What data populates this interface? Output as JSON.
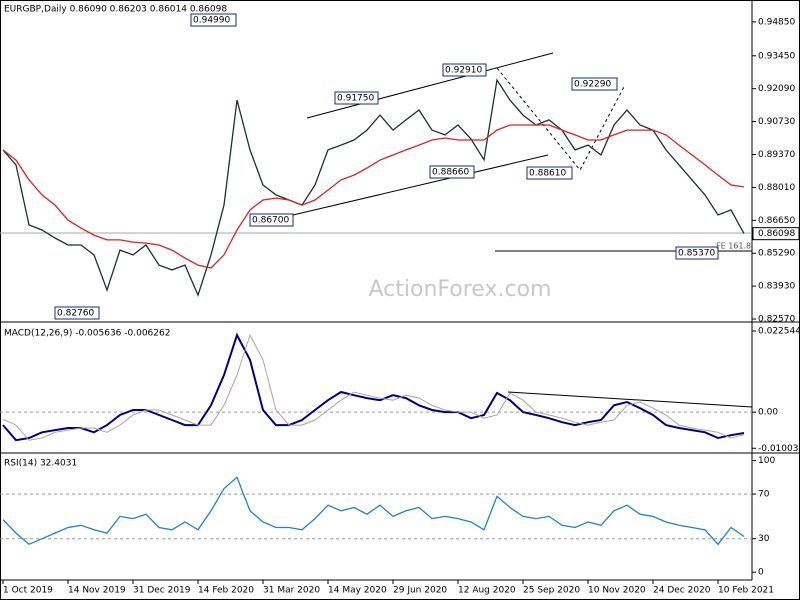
{
  "chart_data": [
    {
      "type": "line",
      "title": "EURGBP,Daily  0.86090 0.86203 0.86014 0.86098",
      "watermark": "ActionForex.com",
      "ylim": [
        0.8253,
        0.9559
      ],
      "yticks": [
        {
          "value": 0.9485,
          "label": "0.94850"
        },
        {
          "value": 0.9345,
          "label": "0.93450"
        },
        {
          "value": 0.9209,
          "label": "0.92090"
        },
        {
          "value": 0.9073,
          "label": "0.90730"
        },
        {
          "value": 0.8937,
          "label": "0.89370"
        },
        {
          "value": 0.8801,
          "label": "0.88010"
        },
        {
          "value": 0.8665,
          "label": "0.86650"
        },
        {
          "value": 0.8529,
          "label": "0.85290"
        },
        {
          "value": 0.8393,
          "label": "0.83930"
        },
        {
          "value": 0.8257,
          "label": "0.82570"
        }
      ],
      "last_price": {
        "value": 0.86098,
        "label": "0.86098"
      },
      "series": [
        {
          "color": "#1f3030",
          "values": [
            0.8956,
            0.8894,
            0.8646,
            0.8625,
            0.8592,
            0.8563,
            0.8563,
            0.8522,
            0.8377,
            0.8542,
            0.8522,
            0.8563,
            0.848,
            0.846,
            0.848,
            0.8356,
            0.8522,
            0.8728,
            0.9162,
            0.8956,
            0.8811,
            0.877,
            0.8749,
            0.8728,
            0.8811,
            0.8956,
            0.8976,
            0.8997,
            0.9038,
            0.91,
            0.9038,
            0.908,
            0.9121,
            0.9038,
            0.9018,
            0.9059,
            0.9001,
            0.8915,
            0.9245,
            0.9162,
            0.91,
            0.9059,
            0.908,
            0.9038,
            0.8956,
            0.8976,
            0.8935,
            0.9059,
            0.9121,
            0.9059,
            0.9038,
            0.8956,
            0.8894,
            0.8832,
            0.877,
            0.8687,
            0.8708,
            0.861
          ]
        },
        {
          "color": "#e02020",
          "values": [
            0.8956,
            0.8914,
            0.8832,
            0.877,
            0.8728,
            0.8666,
            0.8633,
            0.8604,
            0.8584,
            0.8584,
            0.8575,
            0.8571,
            0.8563,
            0.8542,
            0.8509,
            0.848,
            0.8468,
            0.8522,
            0.8625,
            0.8708,
            0.8749,
            0.8757,
            0.8749,
            0.8728,
            0.8749,
            0.879,
            0.8832,
            0.8852,
            0.8881,
            0.8914,
            0.8935,
            0.8956,
            0.8976,
            0.8997,
            0.9005,
            0.8997,
            0.8997,
            0.8997,
            0.9038,
            0.9059,
            0.9059,
            0.9059,
            0.9059,
            0.9038,
            0.9018,
            0.8997,
            0.8997,
            0.9018,
            0.9038,
            0.9038,
            0.9038,
            0.9018,
            0.8976,
            0.8935,
            0.8894,
            0.8852,
            0.8811,
            0.8803
          ]
        }
      ],
      "annotations": [
        "0.94990",
        "0.91750",
        "0.92910",
        "0.92290",
        "0.86700",
        "0.88660",
        "0.88610",
        "0.85370",
        "0.82760",
        "FE 161.8"
      ]
    },
    {
      "type": "line",
      "title": "MACD(12,26,9) -0.005636 -0.006262",
      "ylim": [
        -0.0108,
        0.0242
      ],
      "yticks": [
        0.022544,
        {
          "value": 0,
          "label": "0.00"
        },
        -0.010039
      ],
      "reference_lines": [
        0
      ],
      "series": [
        {
          "color": "#000080",
          "width": 2,
          "values": [
            -0.0036,
            -0.0078,
            -0.0072,
            -0.0056,
            -0.005,
            -0.0044,
            -0.0044,
            -0.0056,
            -0.0036,
            -0.0008,
            0.0006,
            0.0006,
            -0.0008,
            -0.0022,
            -0.0036,
            -0.0036,
            0.0019,
            0.0103,
            0.0214,
            0.0145,
            0.0006,
            -0.0036,
            -0.0036,
            -0.0022,
            0.0006,
            0.0033,
            0.0056,
            0.0047,
            0.0039,
            0.0033,
            0.0047,
            0.0039,
            0.0019,
            0.0006,
            0,
            0,
            -0.0017,
            -0.0008,
            0.0053,
            0.0033,
            0,
            -0.0008,
            -0.0017,
            -0.0028,
            -0.0036,
            -0.0028,
            -0.0022,
            0.0019,
            0.0028,
            0.0011,
            -0.0008,
            -0.0036,
            -0.0044,
            -0.005,
            -0.0056,
            -0.0072,
            -0.0064,
            -0.0058
          ]
        },
        {
          "color": "#b0a0a0",
          "width": 1,
          "values": [
            -0.002,
            -0.0036,
            -0.0078,
            -0.0072,
            -0.0056,
            -0.005,
            -0.0044,
            -0.0044,
            -0.0056,
            -0.0036,
            -0.0008,
            0.0006,
            0.0006,
            -0.0008,
            -0.0022,
            -0.0036,
            -0.0036,
            0.0019,
            0.0103,
            0.0214,
            0.0145,
            0.0006,
            -0.0036,
            -0.0036,
            -0.0022,
            0.0006,
            0.0033,
            0.0056,
            0.0047,
            0.0039,
            0.0033,
            0.0047,
            0.0039,
            0.0019,
            0.0006,
            0,
            0,
            -0.0017,
            -0.0008,
            0.0053,
            0.0033,
            0,
            -0.0008,
            -0.0017,
            -0.0028,
            -0.0036,
            -0.0028,
            -0.0022,
            0.0019,
            0.0028,
            0.0011,
            -0.0008,
            -0.0036,
            -0.0044,
            -0.005,
            -0.0056,
            -0.0072,
            -0.0063
          ]
        }
      ]
    },
    {
      "type": "line",
      "title": "RSI(14) 32.4031",
      "ylim": [
        -7,
        105
      ],
      "yticks": [
        100,
        70,
        30,
        0
      ],
      "reference_lines": [
        70,
        30
      ],
      "categories": [
        "1 Oct 2019",
        null,
        null,
        null,
        null,
        "14 Nov 2019",
        null,
        null,
        null,
        null,
        "31 Dec 2019",
        null,
        null,
        null,
        null,
        "14 Feb 2020",
        null,
        null,
        null,
        null,
        "31 Mar 2020",
        null,
        null,
        null,
        null,
        "14 May 2020",
        null,
        null,
        null,
        null,
        "29 Jun 2020",
        null,
        null,
        null,
        null,
        "12 Aug 2020",
        null,
        null,
        null,
        null,
        "25 Sep 2020",
        null,
        null,
        null,
        null,
        "10 Nov 2020",
        null,
        null,
        null,
        null,
        "24 Dec 2020",
        null,
        null,
        null,
        null,
        "10 Feb 2021",
        null,
        null
      ],
      "series": [
        {
          "color": "#2080d0",
          "values": [
            47,
            35,
            25,
            30,
            35,
            40,
            42,
            38,
            35,
            50,
            48,
            52,
            40,
            38,
            45,
            38,
            55,
            75,
            85,
            55,
            45,
            40,
            40,
            38,
            48,
            60,
            55,
            58,
            52,
            60,
            50,
            55,
            58,
            48,
            50,
            48,
            45,
            38,
            68,
            58,
            50,
            48,
            50,
            42,
            40,
            45,
            42,
            55,
            60,
            52,
            50,
            45,
            42,
            40,
            38,
            25,
            40,
            32
          ]
        }
      ]
    }
  ]
}
